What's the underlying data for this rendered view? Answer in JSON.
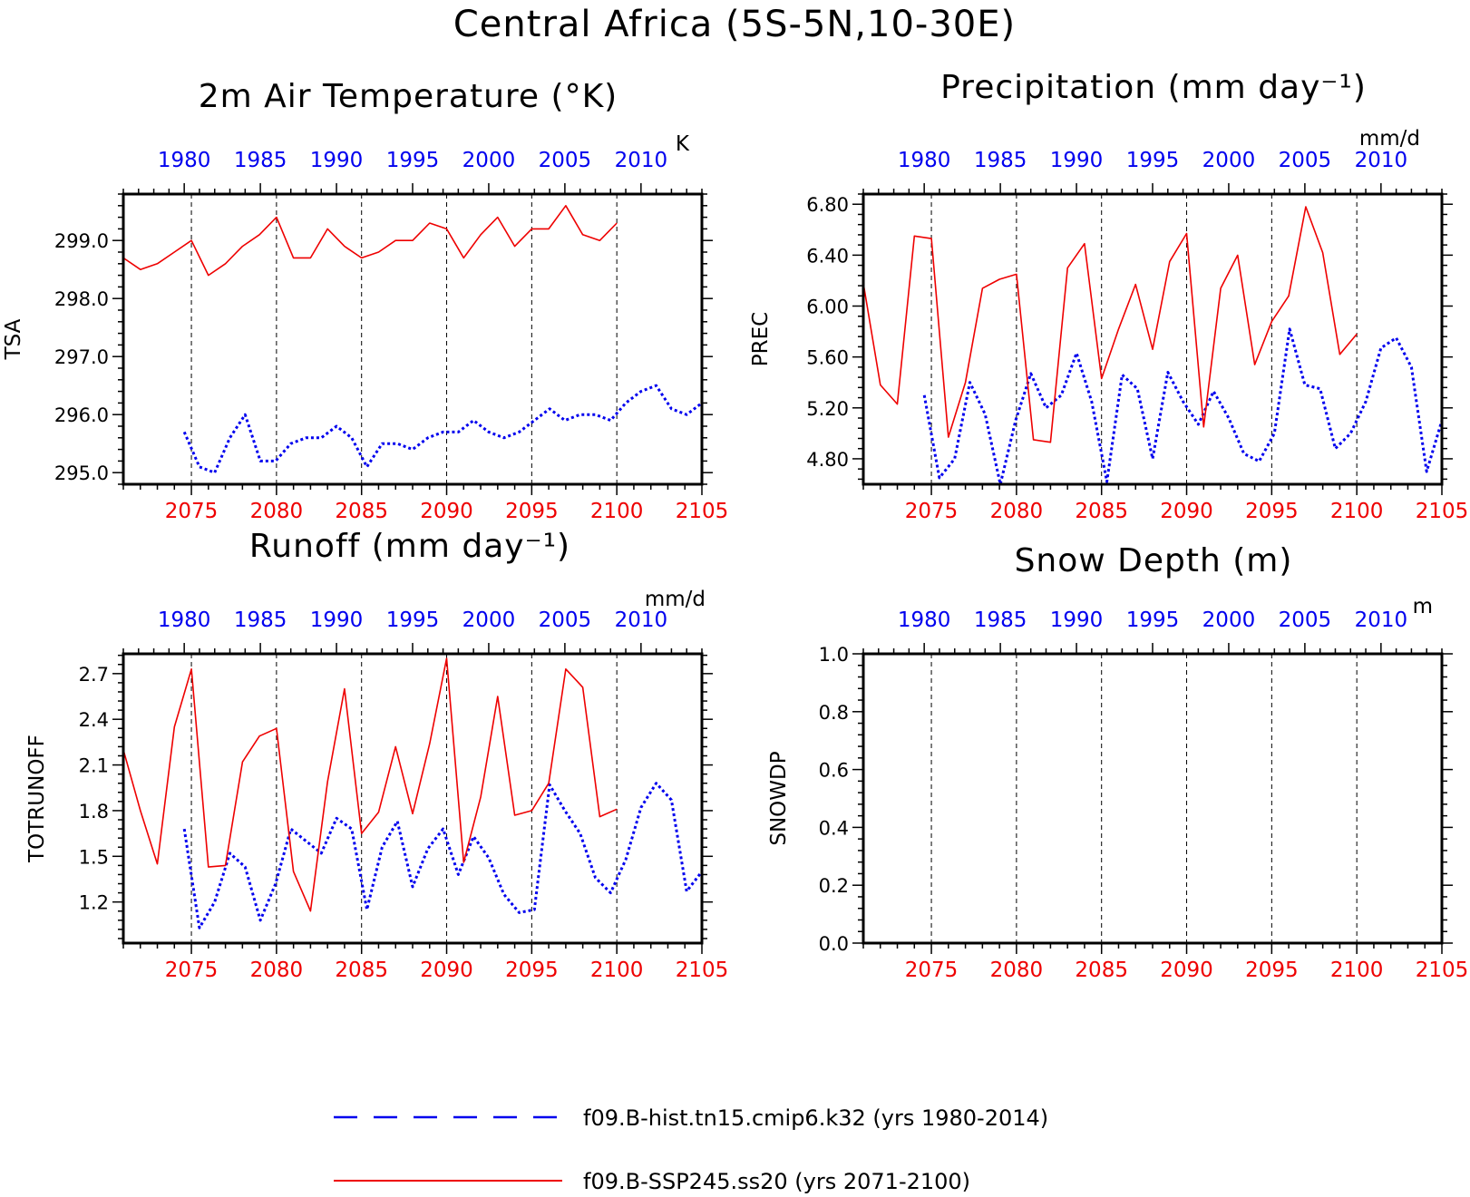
{
  "title": "Central Africa (5S-5N,10-30E)",
  "legend": {
    "hist": "f09.B-hist.tn15.cmip6.k32 (yrs 1980-2014)",
    "ssp": "f09.B-SSP245.ss20 (yrs 2071-2100)"
  },
  "colors": {
    "hist": "#0000ee",
    "ssp": "#ee0000",
    "axis": "#000000"
  },
  "chart_data": [
    {
      "type": "line",
      "title": "2m Air Temperature (°K)",
      "ylabel": "TSA",
      "unit": "K",
      "ylim": [
        294.8,
        299.8
      ],
      "yticks": [
        295.0,
        296.0,
        297.0,
        298.0,
        299.0
      ],
      "ytick_labels": [
        "295.0",
        "296.0",
        "297.0",
        "298.0",
        "299.0"
      ],
      "top_xlim": [
        1976,
        2014
      ],
      "top_ticks": [
        1980,
        1985,
        1990,
        1995,
        2000,
        2005,
        2010
      ],
      "bottom_xlim": [
        2071,
        2105
      ],
      "bottom_ticks": [
        2075,
        2080,
        2085,
        2090,
        2095,
        2100,
        2105
      ],
      "grid": "dashed vertical at bottom-axis ticks",
      "series": [
        {
          "name": "f09.B-hist.tn15.cmip6.k32",
          "axis": "top",
          "x": [
            1980,
            1981,
            1982,
            1983,
            1984,
            1985,
            1986,
            1987,
            1988,
            1989,
            1990,
            1991,
            1992,
            1993,
            1994,
            1995,
            1996,
            1997,
            1998,
            1999,
            2000,
            2001,
            2002,
            2003,
            2004,
            2005,
            2006,
            2007,
            2008,
            2009,
            2010,
            2011,
            2012,
            2013,
            2014
          ],
          "y": [
            295.7,
            295.1,
            295.0,
            295.6,
            296.0,
            295.2,
            295.2,
            295.5,
            295.6,
            295.6,
            295.8,
            295.6,
            295.1,
            295.5,
            295.5,
            295.4,
            295.6,
            295.7,
            295.7,
            295.9,
            295.7,
            295.6,
            295.7,
            295.9,
            296.1,
            295.9,
            296.0,
            296.0,
            295.9,
            296.2,
            296.4,
            296.5,
            296.1,
            296.0,
            296.2
          ]
        },
        {
          "name": "f09.B-SSP245.ss20",
          "axis": "bottom",
          "x": [
            2071,
            2072,
            2073,
            2074,
            2075,
            2076,
            2077,
            2078,
            2079,
            2080,
            2081,
            2082,
            2083,
            2084,
            2085,
            2086,
            2087,
            2088,
            2089,
            2090,
            2091,
            2092,
            2093,
            2094,
            2095,
            2096,
            2097,
            2098,
            2099,
            2100
          ],
          "y": [
            298.7,
            298.5,
            298.6,
            298.8,
            299.0,
            298.4,
            298.6,
            298.9,
            299.1,
            299.4,
            298.7,
            298.7,
            299.2,
            298.9,
            298.7,
            298.8,
            299.0,
            299.0,
            299.3,
            299.2,
            298.7,
            299.1,
            299.4,
            298.9,
            299.2,
            299.2,
            299.6,
            299.1,
            299.0,
            299.3
          ]
        }
      ]
    },
    {
      "type": "line",
      "title": "Precipitation (mm day⁻¹)",
      "ylabel": "PREC",
      "unit": "mm/d",
      "ylim": [
        4.6,
        6.88
      ],
      "yticks": [
        4.8,
        5.2,
        5.6,
        6.0,
        6.4,
        6.8
      ],
      "ytick_labels": [
        "4.80",
        "5.20",
        "5.60",
        "6.00",
        "6.40",
        "6.80"
      ],
      "top_xlim": [
        1976,
        2014
      ],
      "top_ticks": [
        1980,
        1985,
        1990,
        1995,
        2000,
        2005,
        2010
      ],
      "bottom_xlim": [
        2071,
        2105
      ],
      "bottom_ticks": [
        2075,
        2080,
        2085,
        2090,
        2095,
        2100,
        2105
      ],
      "grid": "dashed vertical at bottom-axis ticks",
      "series": [
        {
          "name": "f09.B-hist.tn15.cmip6.k32",
          "axis": "top",
          "x": [
            1980,
            1981,
            1982,
            1983,
            1984,
            1985,
            1986,
            1987,
            1988,
            1989,
            1990,
            1991,
            1992,
            1993,
            1994,
            1995,
            1996,
            1997,
            1998,
            1999,
            2000,
            2001,
            2002,
            2003,
            2004,
            2005,
            2006,
            2007,
            2008,
            2009,
            2010,
            2011,
            2012,
            2013,
            2014
          ],
          "y": [
            5.3,
            4.65,
            4.8,
            5.4,
            5.15,
            4.6,
            5.1,
            5.47,
            5.2,
            5.3,
            5.63,
            5.25,
            4.62,
            5.46,
            5.35,
            4.8,
            5.48,
            5.25,
            5.07,
            5.33,
            5.12,
            4.84,
            4.78,
            5.0,
            5.82,
            5.38,
            5.35,
            4.88,
            5.0,
            5.25,
            5.67,
            5.75,
            5.52,
            4.7,
            5.1
          ]
        },
        {
          "name": "f09.B-SSP245.ss20",
          "axis": "bottom",
          "x": [
            2071,
            2072,
            2073,
            2074,
            2075,
            2076,
            2077,
            2078,
            2079,
            2080,
            2081,
            2082,
            2083,
            2084,
            2085,
            2086,
            2087,
            2088,
            2089,
            2090,
            2091,
            2092,
            2093,
            2094,
            2095,
            2096,
            2097,
            2098,
            2099,
            2100
          ],
          "y": [
            6.18,
            5.38,
            5.23,
            6.55,
            6.53,
            4.97,
            5.4,
            6.14,
            6.21,
            6.25,
            4.95,
            4.93,
            6.3,
            6.49,
            5.43,
            5.82,
            6.17,
            5.66,
            6.35,
            6.57,
            5.05,
            6.14,
            6.4,
            5.54,
            5.88,
            6.08,
            6.78,
            6.42,
            5.62,
            5.78
          ]
        }
      ]
    },
    {
      "type": "line",
      "title": "Runoff (mm day⁻¹)",
      "ylabel": "TOTRUNOFF",
      "unit": "mm/d",
      "ylim": [
        0.93,
        2.83
      ],
      "yticks": [
        1.2,
        1.5,
        1.8,
        2.1,
        2.4,
        2.7
      ],
      "ytick_labels": [
        "1.2",
        "1.5",
        "1.8",
        "2.1",
        "2.4",
        "2.7"
      ],
      "top_xlim": [
        1976,
        2014
      ],
      "top_ticks": [
        1980,
        1985,
        1990,
        1995,
        2000,
        2005,
        2010
      ],
      "bottom_xlim": [
        2071,
        2105
      ],
      "bottom_ticks": [
        2075,
        2080,
        2085,
        2090,
        2095,
        2100,
        2105
      ],
      "grid": "dashed vertical at bottom-axis ticks",
      "series": [
        {
          "name": "f09.B-hist.tn15.cmip6.k32",
          "axis": "top",
          "x": [
            1980,
            1981,
            1982,
            1983,
            1984,
            1985,
            1986,
            1987,
            1988,
            1989,
            1990,
            1991,
            1992,
            1993,
            1994,
            1995,
            1996,
            1997,
            1998,
            1999,
            2000,
            2001,
            2002,
            2003,
            2004,
            2005,
            2006,
            2007,
            2008,
            2009,
            2010,
            2011,
            2012,
            2013,
            2014
          ],
          "y": [
            1.68,
            1.03,
            1.2,
            1.52,
            1.43,
            1.08,
            1.32,
            1.68,
            1.6,
            1.52,
            1.75,
            1.68,
            1.15,
            1.56,
            1.73,
            1.3,
            1.55,
            1.68,
            1.38,
            1.63,
            1.49,
            1.25,
            1.13,
            1.15,
            1.97,
            1.8,
            1.65,
            1.36,
            1.26,
            1.48,
            1.82,
            1.98,
            1.87,
            1.27,
            1.4
          ]
        },
        {
          "name": "f09.B-SSP245.ss20",
          "axis": "bottom",
          "x": [
            2071,
            2072,
            2073,
            2074,
            2075,
            2076,
            2077,
            2078,
            2079,
            2080,
            2081,
            2082,
            2083,
            2084,
            2085,
            2086,
            2087,
            2088,
            2089,
            2090,
            2091,
            2092,
            2093,
            2094,
            2095,
            2096,
            2097,
            2098,
            2099,
            2100
          ],
          "y": [
            2.2,
            1.8,
            1.45,
            2.35,
            2.73,
            1.43,
            1.44,
            2.12,
            2.29,
            2.34,
            1.4,
            1.14,
            1.99,
            2.6,
            1.65,
            1.79,
            2.22,
            1.78,
            2.24,
            2.8,
            1.46,
            1.89,
            2.55,
            1.77,
            1.8,
            1.98,
            2.73,
            2.61,
            1.76,
            1.81
          ]
        }
      ]
    },
    {
      "type": "line",
      "title": "Snow Depth (m)",
      "ylabel": "SNOWDP",
      "unit": "m",
      "ylim": [
        0.0,
        1.0
      ],
      "yticks": [
        0.0,
        0.2,
        0.4,
        0.6,
        0.8,
        1.0
      ],
      "ytick_labels": [
        "0.0",
        "0.2",
        "0.4",
        "0.6",
        "0.8",
        "1.0"
      ],
      "top_xlim": [
        1976,
        2014
      ],
      "top_ticks": [
        1980,
        1985,
        1990,
        1995,
        2000,
        2005,
        2010
      ],
      "bottom_xlim": [
        2071,
        2105
      ],
      "bottom_ticks": [
        2075,
        2080,
        2085,
        2090,
        2095,
        2100,
        2105
      ],
      "grid": "dashed vertical at bottom-axis ticks",
      "series": []
    }
  ]
}
